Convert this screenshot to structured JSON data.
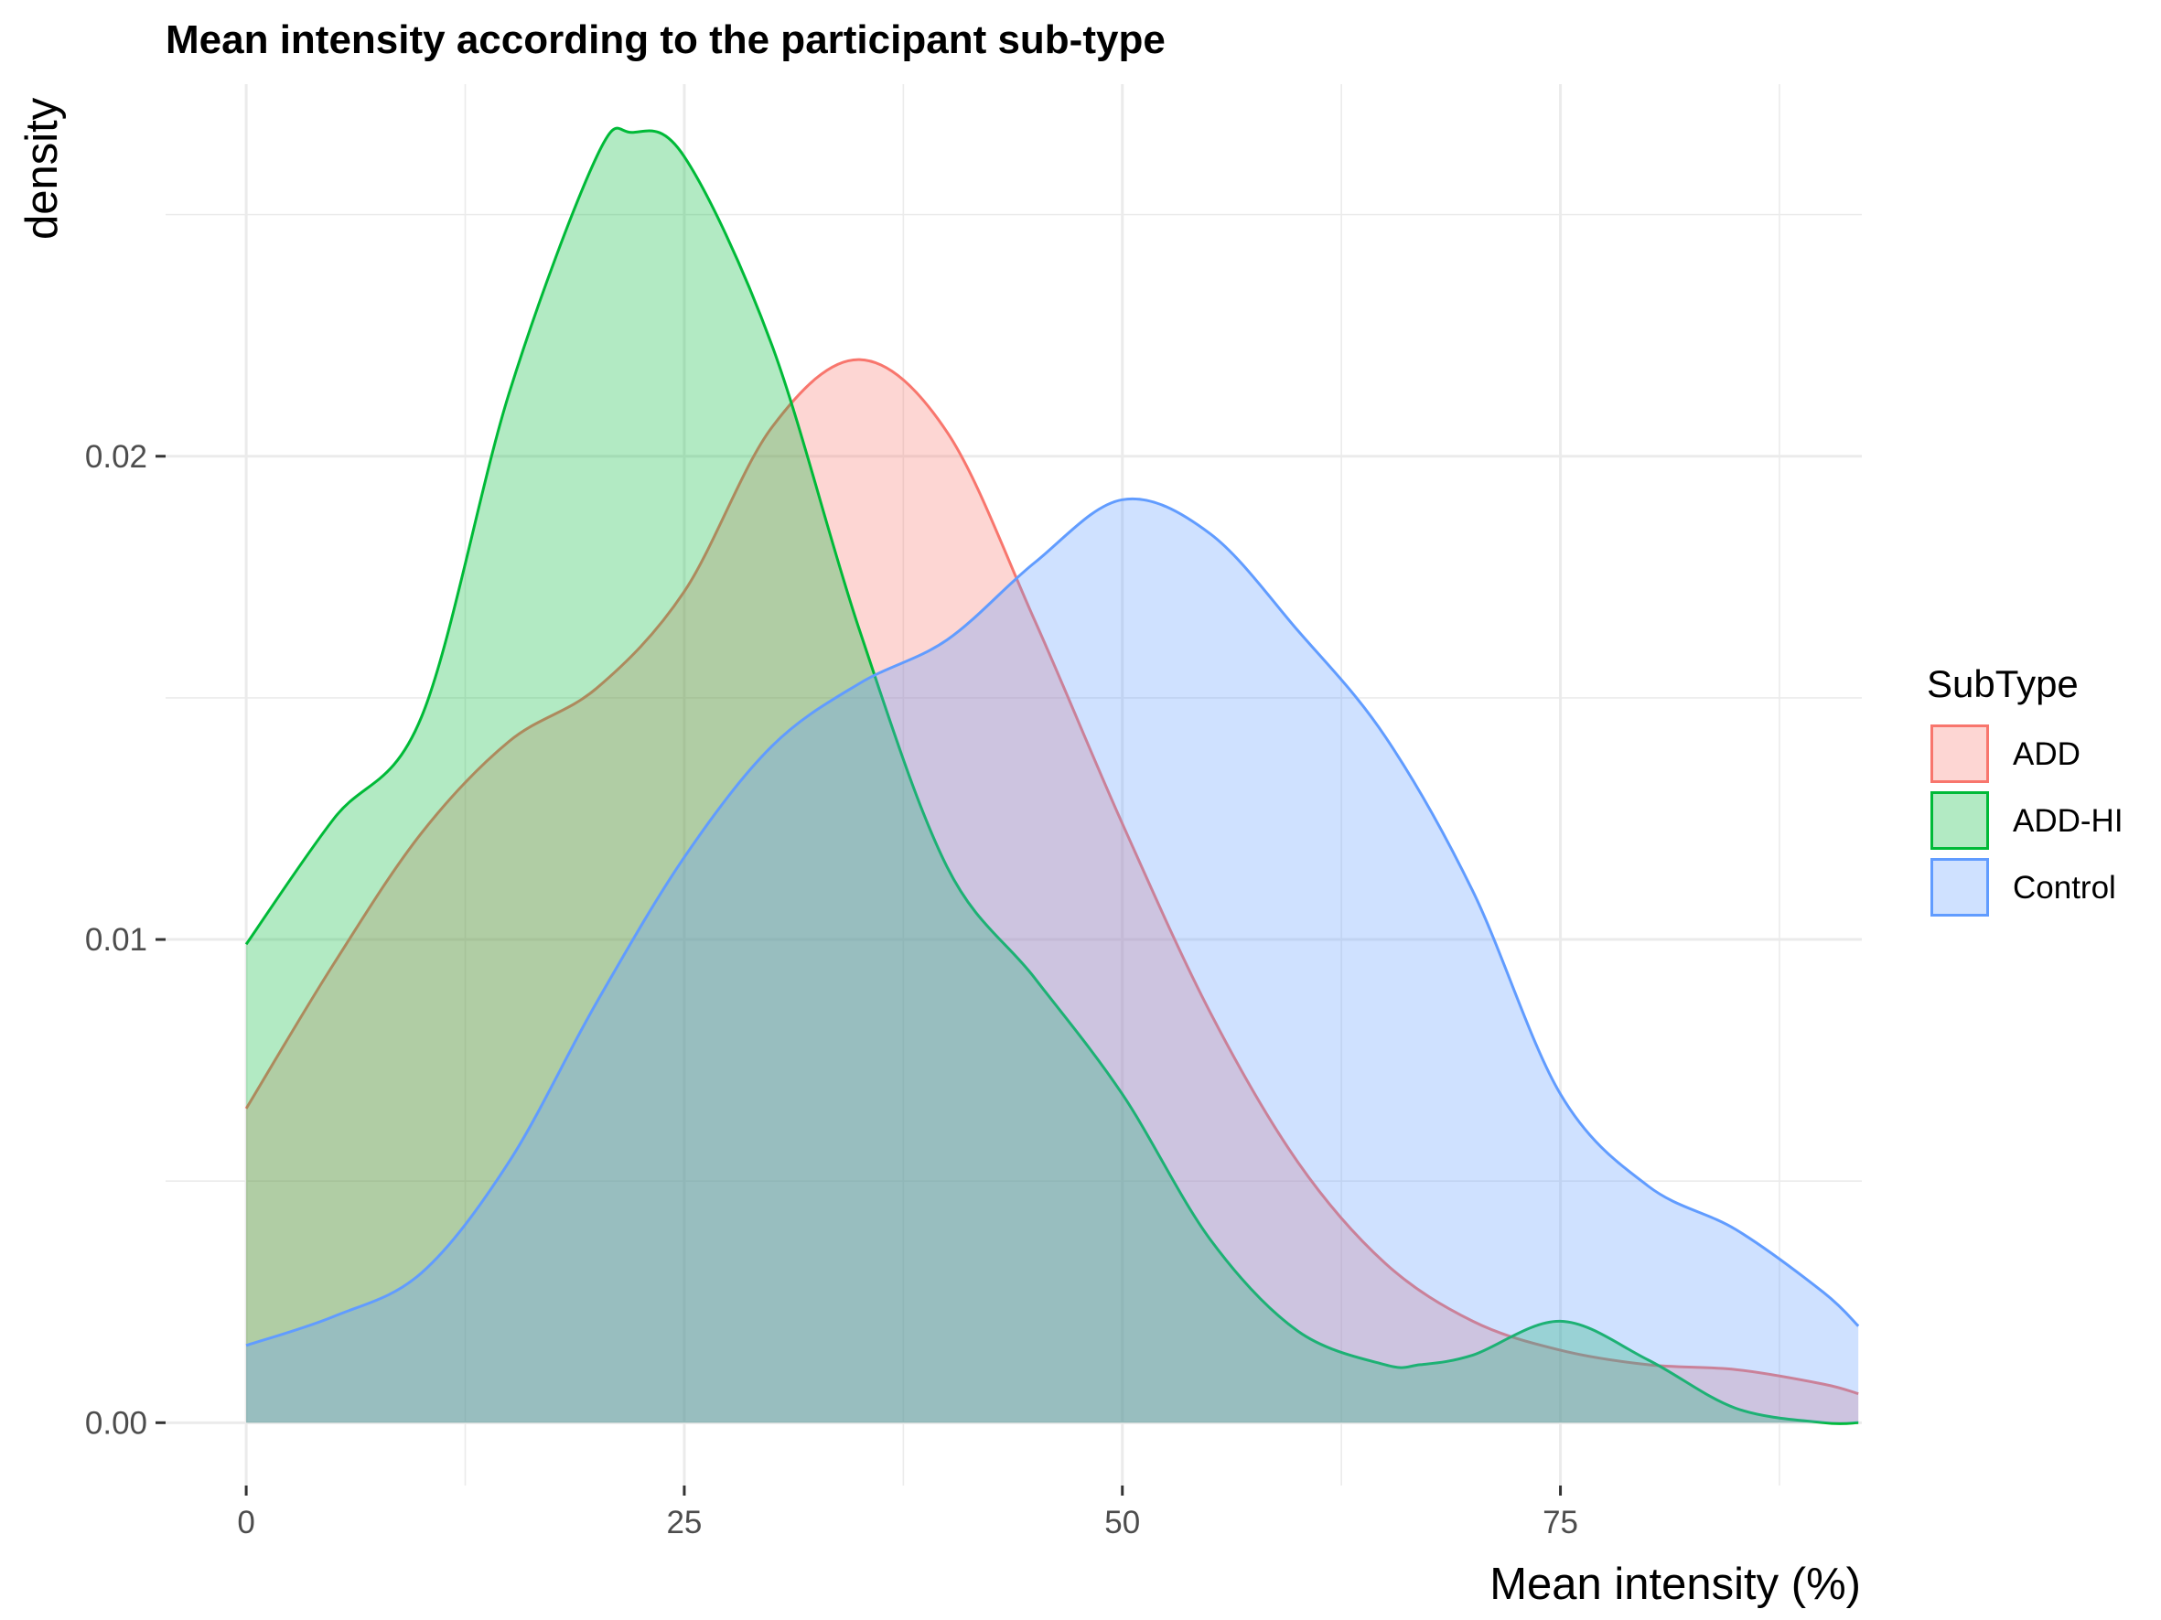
{
  "chart_data": {
    "type": "area",
    "subtype": "density",
    "title": "Mean intensity according to the participant sub-type",
    "xlabel": "Mean intensity (%)",
    "ylabel": "density",
    "xlim": [
      -4.6,
      92.2
    ],
    "ylim": [
      -0.0013,
      0.0277
    ],
    "x_ticks": [
      0,
      25,
      50,
      75
    ],
    "x_tick_labels": [
      "0",
      "25",
      "50",
      "75"
    ],
    "y_ticks": [
      0.0,
      0.01,
      0.02
    ],
    "y_tick_labels": [
      "0.00",
      "0.01",
      "0.02"
    ],
    "grid": true,
    "legend": {
      "title": "SubType",
      "position": "right"
    },
    "series": [
      {
        "name": "ADD",
        "color": "#F8766D",
        "x": [
          0,
          5,
          10,
          15,
          20,
          25,
          30,
          35,
          40,
          45,
          50,
          55,
          60,
          65,
          70,
          75,
          80,
          85,
          90,
          92
        ],
        "values": [
          0.0065,
          0.0095,
          0.0122,
          0.0141,
          0.0152,
          0.0172,
          0.0206,
          0.022,
          0.0205,
          0.0166,
          0.0124,
          0.0085,
          0.0054,
          0.0033,
          0.0021,
          0.0015,
          0.0012,
          0.0011,
          0.0008,
          0.0006
        ]
      },
      {
        "name": "ADD-HI",
        "color": "#00BA38",
        "x": [
          0,
          5,
          10,
          15,
          20,
          22,
          25,
          30,
          35,
          40,
          45,
          50,
          55,
          60,
          65,
          67,
          70,
          75,
          80,
          85,
          90,
          92
        ],
        "values": [
          0.0099,
          0.0125,
          0.0146,
          0.0213,
          0.0262,
          0.0267,
          0.0262,
          0.0223,
          0.0164,
          0.0115,
          0.0092,
          0.0068,
          0.0038,
          0.0019,
          0.0012,
          0.0012,
          0.0014,
          0.0021,
          0.0013,
          0.0003,
          0.0,
          0.0
        ]
      },
      {
        "name": "Control",
        "color": "#619CFF",
        "x": [
          0,
          5,
          10,
          15,
          20,
          25,
          30,
          35,
          40,
          45,
          50,
          55,
          60,
          65,
          70,
          75,
          80,
          85,
          90,
          92
        ],
        "values": [
          0.0016,
          0.0022,
          0.0031,
          0.0054,
          0.0087,
          0.0117,
          0.014,
          0.0153,
          0.0162,
          0.0178,
          0.0191,
          0.0184,
          0.0164,
          0.0142,
          0.011,
          0.0068,
          0.0049,
          0.004,
          0.0027,
          0.002
        ]
      }
    ]
  }
}
